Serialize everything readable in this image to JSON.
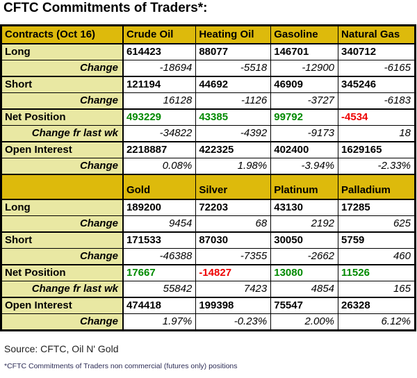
{
  "title": "CFTC Commitments of Traders*:",
  "colors": {
    "header_bg": "#DDBA0C",
    "label_bg": "#E9E8A3",
    "positive": "#008A00",
    "negative": "#EE0000",
    "border": "#000000",
    "footnote_text": "#2B2B55"
  },
  "chart_data": {
    "type": "table",
    "title": "CFTC Commitments of Traders*:",
    "sections": [
      {
        "columns": [
          "Contracts (Oct 16)",
          "Crude Oil",
          "Heating Oil",
          "Gasoline",
          "Natural Gas"
        ],
        "rows": [
          {
            "label": "Long",
            "style": "value",
            "values": [
              "614423",
              "88077",
              "146701",
              "340712"
            ]
          },
          {
            "label": "Change",
            "style": "change",
            "values": [
              "-18694",
              "-5518",
              "-12900",
              "-6165"
            ]
          },
          {
            "label": "Short",
            "style": "value",
            "values": [
              "121194",
              "44692",
              "46909",
              "345246"
            ]
          },
          {
            "label": "Change",
            "style": "change",
            "values": [
              "16128",
              "-1126",
              "-3727",
              "-6183"
            ]
          },
          {
            "label": "Net Position",
            "style": "net",
            "values": [
              "493229",
              "43385",
              "99792",
              "-4534"
            ]
          },
          {
            "label": "Change fr last wk",
            "style": "change",
            "values": [
              "-34822",
              "-4392",
              "-9173",
              "18"
            ]
          },
          {
            "label": "Open Interest",
            "style": "value",
            "values": [
              "2218887",
              "422325",
              "402400",
              "1629165"
            ]
          },
          {
            "label": "Change",
            "style": "change",
            "values": [
              "0.08%",
              "1.98%",
              "-3.94%",
              "-2.33%"
            ]
          }
        ]
      },
      {
        "columns": [
          "",
          "Gold",
          "Silver",
          "Platinum",
          "Palladium"
        ],
        "rows": [
          {
            "label": "Long",
            "style": "value",
            "values": [
              "189200",
              "72203",
              "43130",
              "17285"
            ]
          },
          {
            "label": "Change",
            "style": "change",
            "values": [
              "9454",
              "68",
              "2192",
              "625"
            ]
          },
          {
            "label": "Short",
            "style": "value",
            "values": [
              "171533",
              "87030",
              "30050",
              "5759"
            ]
          },
          {
            "label": "Change",
            "style": "change",
            "values": [
              "-46388",
              "-7355",
              "-2662",
              "460"
            ]
          },
          {
            "label": "Net Position",
            "style": "net",
            "values": [
              "17667",
              "-14827",
              "13080",
              "11526"
            ]
          },
          {
            "label": "Change fr last wk",
            "style": "change",
            "values": [
              "55842",
              "7423",
              "4854",
              "165"
            ]
          },
          {
            "label": "Open Interest",
            "style": "value",
            "values": [
              "474418",
              "199398",
              "75547",
              "26328"
            ]
          },
          {
            "label": "Change",
            "style": "change",
            "values": [
              "1.97%",
              "-0.23%",
              "2.00%",
              "6.12%"
            ]
          }
        ]
      }
    ]
  },
  "footer": {
    "source": "Source: CFTC, Oil N' Gold",
    "footnote": "*CFTC Commitments of Traders non commercial (futures only) positions"
  }
}
